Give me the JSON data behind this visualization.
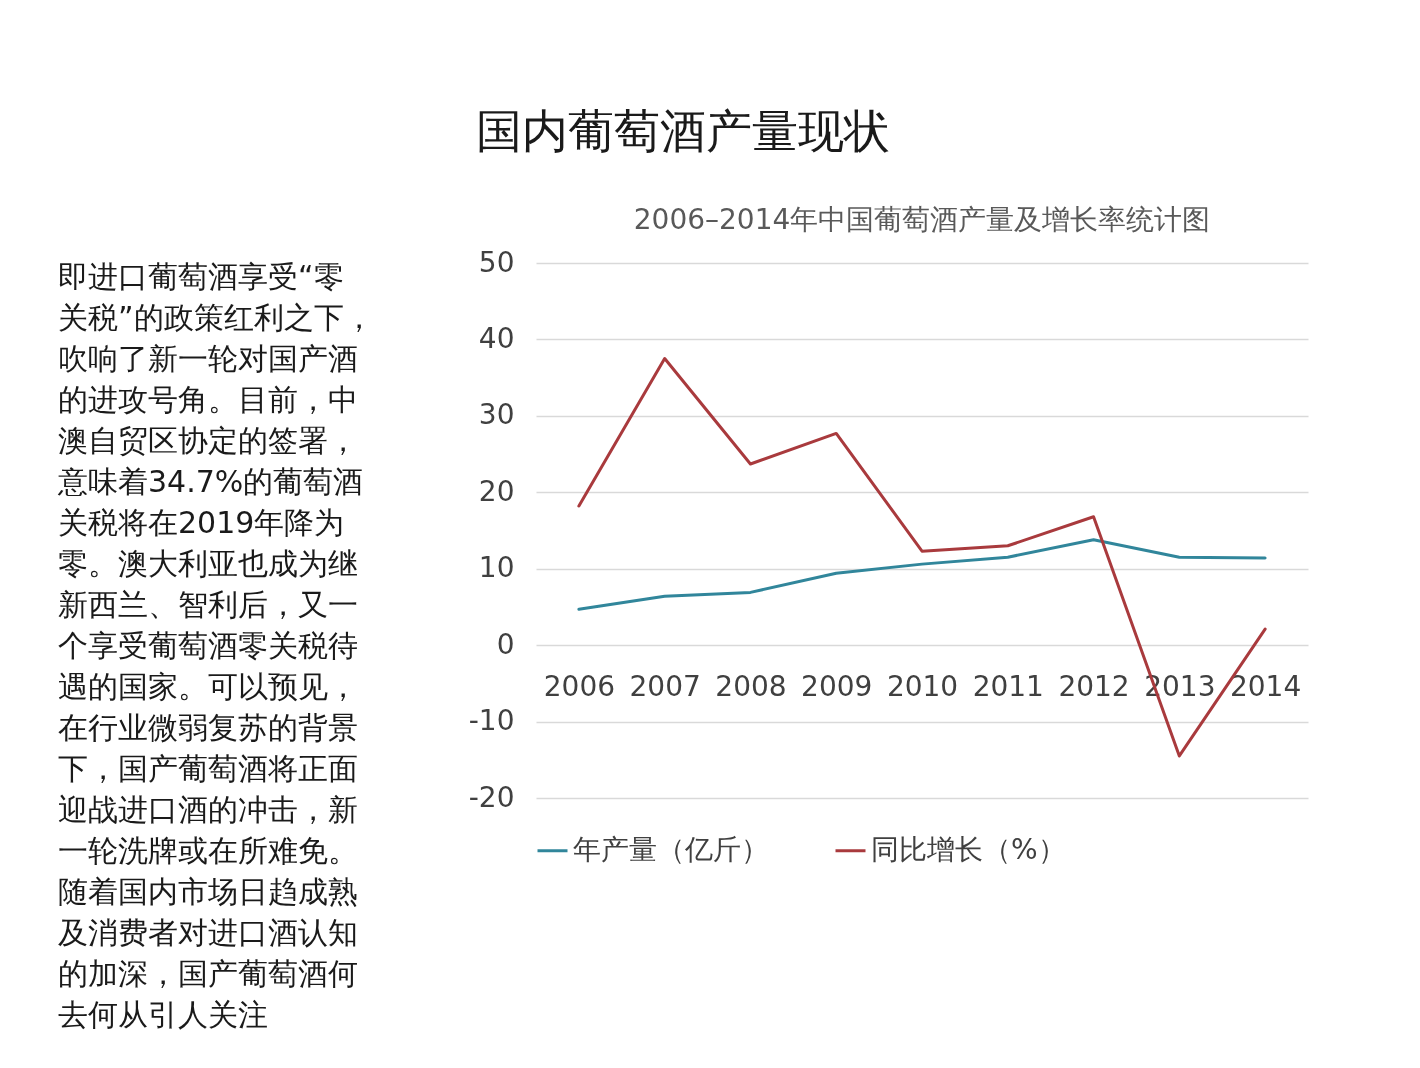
{
  "chart_data": {
    "type": "line",
    "title": "国内葡萄酒产量现状",
    "subtitle": "2006–2014年中国葡萄酒产量及增长率统计图",
    "annotations": [
      "即进口葡萄酒享受“零关税”的政策红利之下，吹响了新一轮对国产酒的进攻号角。目前，中澳自贸区协定的签署，意味着34.7%的葡萄酒关税将在2019年降为零。澳大利亚也成为继新西兰、智利后，又一个享受葡萄酒零关税待遇的国家。可以预见，在行业微弱复苏的背景下，国产葡萄酒将正面迎战进口酒的冲击，新一轮洗牌或在所难免。随着国内市场日趋成熟及消费者对进口酒认知的加深，国产葡萄酒何去何从引人关注"
    ],
    "categories": [
      "2006",
      "2007",
      "2008",
      "2009",
      "2010",
      "2011",
      "2012",
      "2013",
      "2014"
    ],
    "series": [
      {
        "name": "年产量（亿斤）",
        "color": "#31869b",
        "values": [
          4.7,
          6.4,
          6.9,
          9.4,
          10.6,
          11.5,
          13.8,
          11.5,
          11.4
        ]
      },
      {
        "name": "同比增长（%）",
        "color": "#a93a3d",
        "values": [
          18.2,
          37.5,
          23.7,
          27.7,
          12.3,
          13.0,
          16.8,
          -14.5,
          2.1
        ]
      }
    ],
    "ylim": [
      -20,
      50
    ],
    "yticks": [
      -20,
      -10,
      0,
      10,
      20,
      30,
      40,
      50
    ],
    "grid": "y",
    "legend": "bottom",
    "line_style": "solid"
  }
}
